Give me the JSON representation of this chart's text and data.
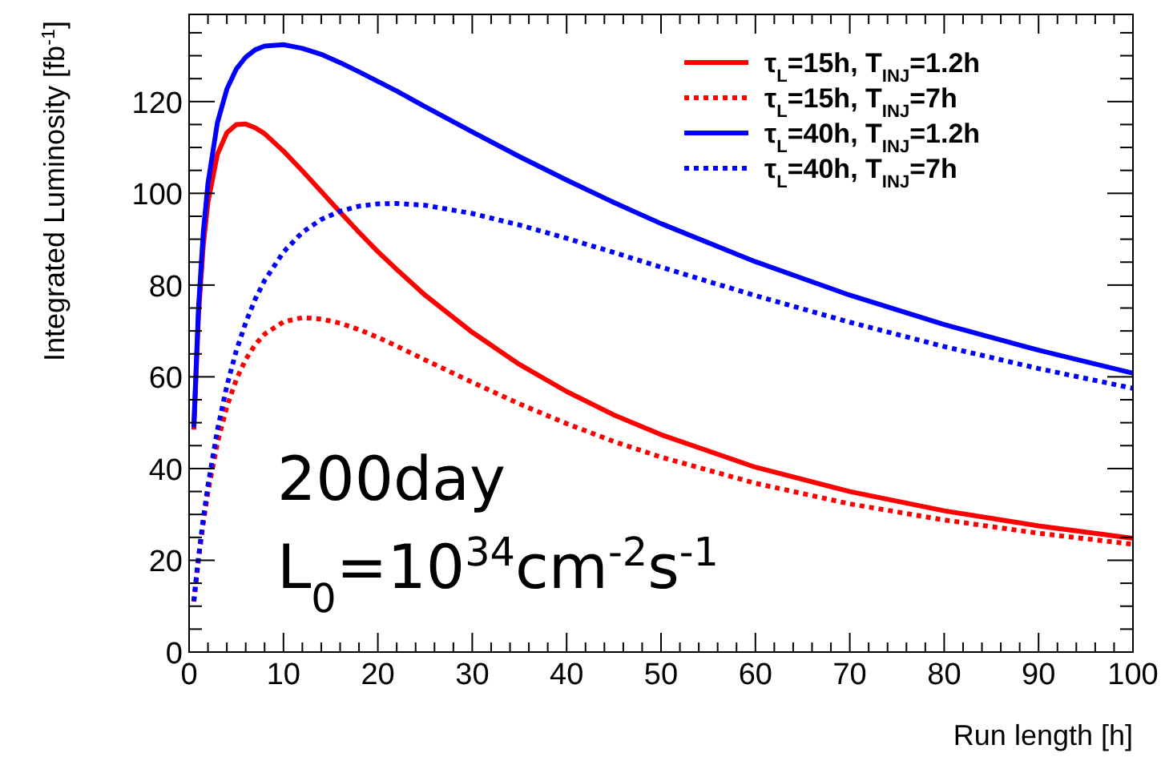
{
  "chart_data": {
    "type": "line",
    "xlabel": "Run length [h]",
    "ylabel": "Integrated Luminosity [fb$^{-1}$]",
    "x": [
      0.5,
      1,
      1.5,
      2,
      3,
      4,
      5,
      6,
      7,
      8,
      10,
      12,
      14,
      16,
      18,
      20,
      22,
      25,
      30,
      35,
      40,
      45,
      50,
      60,
      70,
      80,
      90,
      100
    ],
    "xlim": [
      0,
      100
    ],
    "xticks": [
      0,
      10,
      20,
      30,
      40,
      50,
      60,
      70,
      80,
      90,
      100
    ],
    "ylim": [
      0,
      139
    ],
    "yticks": [
      0,
      20,
      40,
      60,
      80,
      100,
      120
    ],
    "grid": false,
    "legend": "top right",
    "marker": "none",
    "series": [
      {
        "name": "τ$_{L}$=15h, T$_{INJ}$=1.2h",
        "color": "#ff0000",
        "line_style": "solid",
        "values": [
          48.5,
          73.7,
          88.6,
          98.1,
          108.5,
          113.2,
          115.0,
          115.1,
          114.3,
          113.0,
          109.2,
          104.9,
          100.4,
          95.9,
          91.5,
          87.3,
          83.4,
          77.8,
          69.7,
          62.7,
          56.8,
          51.7,
          47.4,
          40.3,
          35.0,
          30.8,
          27.5,
          24.8
        ]
      },
      {
        "name": "τ$_{L}$=15h, T$_{INJ}$=7h",
        "color": "#ff0000",
        "line_style": "dotted",
        "values": [
          11.0,
          20.3,
          28.1,
          34.9,
          45.6,
          53.5,
          59.4,
          63.8,
          67.0,
          69.3,
          72.0,
          72.9,
          72.6,
          71.7,
          70.3,
          68.6,
          66.7,
          63.7,
          58.8,
          54.1,
          49.8,
          45.9,
          42.5,
          36.8,
          32.3,
          28.8,
          25.9,
          23.5
        ]
      },
      {
        "name": "τ$_{L}$=40h, T$_{INJ}$=1.2h",
        "color": "#0000ff",
        "line_style": "solid",
        "values": [
          49.0,
          75.2,
          91.4,
          102.2,
          115.4,
          122.7,
          127.1,
          129.7,
          131.3,
          132.1,
          132.4,
          131.6,
          130.3,
          128.5,
          126.5,
          124.4,
          122.3,
          118.9,
          113.4,
          108.0,
          102.9,
          98.0,
          93.4,
          85.1,
          77.8,
          71.4,
          65.8,
          60.8
        ]
      },
      {
        "name": "τ$_{L}$=40h, T$_{INJ}$=7h",
        "color": "#0000ff",
        "line_style": "dotted",
        "values": [
          11.1,
          20.7,
          29.0,
          36.3,
          48.4,
          58.0,
          65.7,
          71.8,
          76.9,
          81.0,
          87.2,
          91.5,
          94.3,
          96.1,
          97.2,
          97.7,
          97.8,
          97.4,
          95.6,
          93.1,
          90.2,
          87.1,
          83.9,
          77.7,
          71.9,
          66.6,
          61.8,
          57.5
        ]
      }
    ],
    "annotations": [
      "200day",
      "L$_{0}$=10$^{34}$cm$^{-2}$s$^{-1}$"
    ]
  }
}
